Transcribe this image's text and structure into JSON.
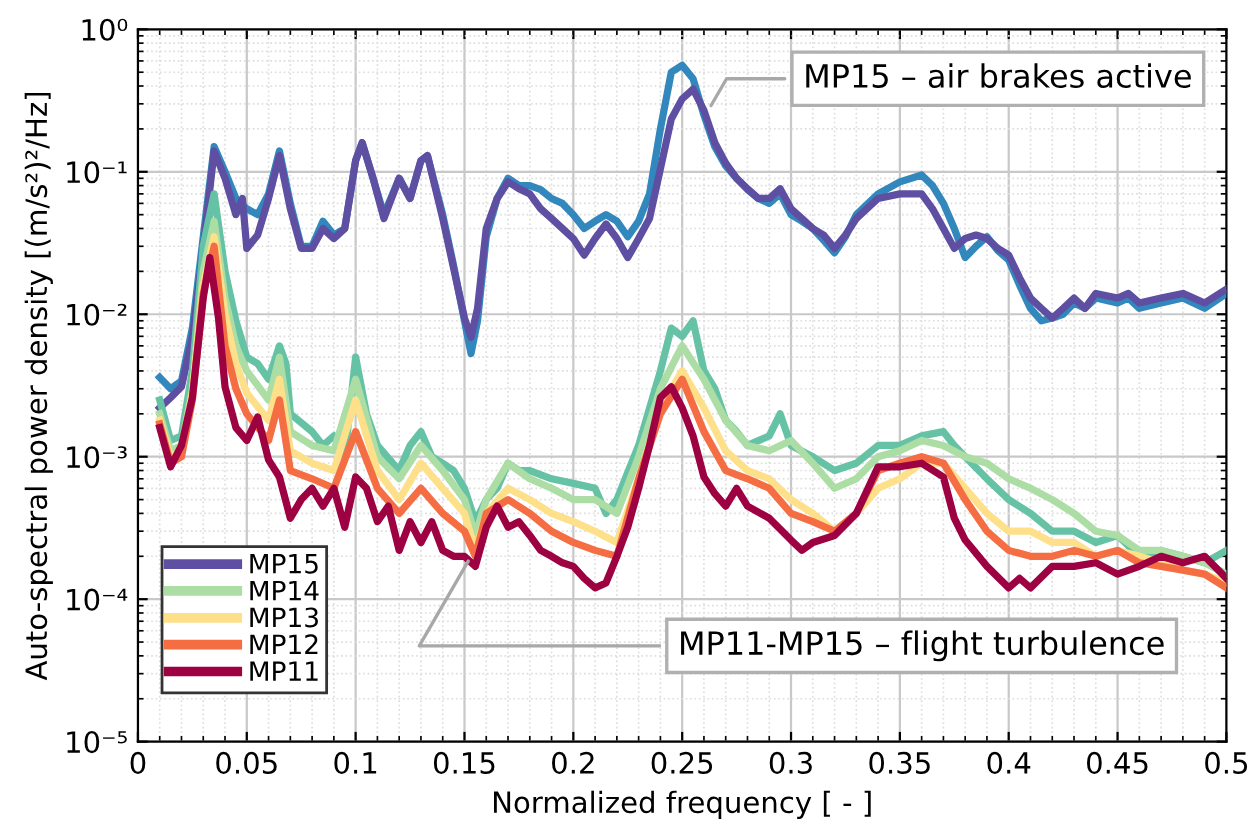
{
  "chart_data": {
    "type": "line",
    "xlabel": "Normalized frequency [ - ]",
    "ylabel": "Auto-spectral power density [(m/s²)²/Hz]",
    "log": "y",
    "grid": true,
    "legend": "bottom left",
    "line_style": "solid",
    "marker": "none",
    "xlim": [
      0,
      0.5
    ],
    "xticks": [
      0,
      0.05,
      0.1,
      0.15,
      0.2,
      0.25,
      0.3,
      0.35,
      0.4,
      0.45,
      0.5
    ],
    "ylim": [
      1e-05,
      1
    ],
    "yticks": [
      {
        "value": 1e-05,
        "label": "10⁻⁵"
      },
      {
        "value": 0.0001,
        "label": "10⁻⁴"
      },
      {
        "value": 0.001,
        "label": "10⁻³"
      },
      {
        "value": 0.01,
        "label": "10⁻²"
      },
      {
        "value": 0.1,
        "label": "10⁻¹"
      },
      {
        "value": 1,
        "label": "10⁰"
      }
    ],
    "annotations": [
      {
        "text": "MP15 – air brakes active",
        "x": 0.262,
        "y": 0.27
      },
      {
        "text": "MP11-MP15 – flight turbulence",
        "x": 0.153,
        "y": 0.0002
      }
    ],
    "series": [
      {
        "color": "#3288bd",
        "x": [
          0.01,
          0.015,
          0.02,
          0.025,
          0.03,
          0.035,
          0.04,
          0.045,
          0.05,
          0.055,
          0.06,
          0.065,
          0.07,
          0.075,
          0.08,
          0.085,
          0.09,
          0.095,
          0.1,
          0.103,
          0.108,
          0.113,
          0.12,
          0.125,
          0.13,
          0.133,
          0.14,
          0.145,
          0.15,
          0.153,
          0.156,
          0.16,
          0.165,
          0.17,
          0.175,
          0.18,
          0.185,
          0.19,
          0.195,
          0.2,
          0.205,
          0.21,
          0.215,
          0.22,
          0.225,
          0.23,
          0.235,
          0.24,
          0.245,
          0.25,
          0.255,
          0.26,
          0.265,
          0.27,
          0.275,
          0.28,
          0.285,
          0.29,
          0.295,
          0.3,
          0.305,
          0.31,
          0.315,
          0.32,
          0.325,
          0.33,
          0.34,
          0.35,
          0.36,
          0.365,
          0.37,
          0.375,
          0.38,
          0.385,
          0.39,
          0.395,
          0.4,
          0.405,
          0.41,
          0.415,
          0.42,
          0.425,
          0.43,
          0.435,
          0.44,
          0.45,
          0.455,
          0.46,
          0.47,
          0.48,
          0.49,
          0.5
        ],
        "values": [
          0.0036,
          0.003,
          0.0034,
          0.008,
          0.035,
          0.15,
          0.1,
          0.065,
          0.055,
          0.05,
          0.07,
          0.14,
          0.06,
          0.03,
          0.03,
          0.045,
          0.036,
          0.04,
          0.12,
          0.16,
          0.09,
          0.05,
          0.09,
          0.065,
          0.12,
          0.13,
          0.05,
          0.022,
          0.009,
          0.0053,
          0.009,
          0.035,
          0.065,
          0.09,
          0.08,
          0.08,
          0.075,
          0.065,
          0.06,
          0.05,
          0.04,
          0.045,
          0.05,
          0.045,
          0.035,
          0.045,
          0.07,
          0.2,
          0.5,
          0.56,
          0.45,
          0.25,
          0.15,
          0.11,
          0.09,
          0.075,
          0.065,
          0.06,
          0.07,
          0.05,
          0.045,
          0.04,
          0.033,
          0.027,
          0.035,
          0.05,
          0.07,
          0.085,
          0.095,
          0.08,
          0.06,
          0.04,
          0.025,
          0.03,
          0.035,
          0.028,
          0.024,
          0.016,
          0.011,
          0.009,
          0.0094,
          0.01,
          0.012,
          0.011,
          0.013,
          0.012,
          0.013,
          0.011,
          0.012,
          0.013,
          0.011,
          0.014
        ]
      },
      {
        "name": "MP15",
        "color": "#5e4fa2",
        "x": [
          0.01,
          0.015,
          0.02,
          0.025,
          0.03,
          0.035,
          0.04,
          0.045,
          0.048,
          0.05,
          0.055,
          0.06,
          0.065,
          0.07,
          0.075,
          0.08,
          0.085,
          0.09,
          0.095,
          0.1,
          0.103,
          0.108,
          0.113,
          0.12,
          0.125,
          0.13,
          0.133,
          0.14,
          0.145,
          0.15,
          0.153,
          0.156,
          0.16,
          0.165,
          0.17,
          0.175,
          0.18,
          0.185,
          0.19,
          0.195,
          0.2,
          0.205,
          0.21,
          0.215,
          0.22,
          0.225,
          0.23,
          0.235,
          0.24,
          0.245,
          0.25,
          0.255,
          0.26,
          0.265,
          0.27,
          0.275,
          0.28,
          0.285,
          0.29,
          0.295,
          0.3,
          0.305,
          0.31,
          0.315,
          0.32,
          0.325,
          0.33,
          0.34,
          0.35,
          0.36,
          0.365,
          0.37,
          0.375,
          0.38,
          0.385,
          0.39,
          0.395,
          0.4,
          0.405,
          0.41,
          0.415,
          0.42,
          0.425,
          0.43,
          0.435,
          0.44,
          0.45,
          0.455,
          0.46,
          0.47,
          0.48,
          0.49,
          0.5
        ],
        "values": [
          0.0022,
          0.0026,
          0.0031,
          0.0069,
          0.029,
          0.14,
          0.09,
          0.05,
          0.065,
          0.029,
          0.036,
          0.065,
          0.13,
          0.055,
          0.029,
          0.029,
          0.04,
          0.034,
          0.04,
          0.12,
          0.16,
          0.09,
          0.047,
          0.09,
          0.065,
          0.12,
          0.13,
          0.047,
          0.021,
          0.0094,
          0.0069,
          0.011,
          0.04,
          0.065,
          0.085,
          0.076,
          0.07,
          0.055,
          0.047,
          0.04,
          0.034,
          0.026,
          0.034,
          0.043,
          0.034,
          0.025,
          0.034,
          0.047,
          0.105,
          0.235,
          0.325,
          0.38,
          0.27,
          0.16,
          0.115,
          0.09,
          0.076,
          0.065,
          0.065,
          0.076,
          0.055,
          0.047,
          0.04,
          0.036,
          0.029,
          0.036,
          0.047,
          0.065,
          0.07,
          0.07,
          0.055,
          0.04,
          0.029,
          0.034,
          0.036,
          0.034,
          0.029,
          0.026,
          0.018,
          0.013,
          0.011,
          0.0094,
          0.011,
          0.013,
          0.011,
          0.014,
          0.013,
          0.014,
          0.012,
          0.013,
          0.014,
          0.012,
          0.015
        ]
      },
      {
        "color": "#66c2a5",
        "x": [
          0.01,
          0.015,
          0.02,
          0.025,
          0.03,
          0.035,
          0.04,
          0.045,
          0.05,
          0.055,
          0.06,
          0.065,
          0.068,
          0.07,
          0.08,
          0.085,
          0.09,
          0.095,
          0.1,
          0.105,
          0.11,
          0.12,
          0.125,
          0.13,
          0.135,
          0.14,
          0.145,
          0.15,
          0.155,
          0.16,
          0.165,
          0.17,
          0.175,
          0.18,
          0.19,
          0.2,
          0.21,
          0.215,
          0.22,
          0.23,
          0.24,
          0.245,
          0.25,
          0.255,
          0.26,
          0.265,
          0.27,
          0.275,
          0.28,
          0.29,
          0.295,
          0.3,
          0.31,
          0.32,
          0.33,
          0.34,
          0.35,
          0.36,
          0.37,
          0.375,
          0.38,
          0.39,
          0.4,
          0.41,
          0.42,
          0.43,
          0.44,
          0.45,
          0.46,
          0.47,
          0.48,
          0.49,
          0.5
        ],
        "values": [
          0.0025,
          0.0013,
          0.0014,
          0.004,
          0.03,
          0.07,
          0.02,
          0.009,
          0.005,
          0.0045,
          0.0035,
          0.006,
          0.0045,
          0.002,
          0.0015,
          0.0012,
          0.0014,
          0.001,
          0.005,
          0.002,
          0.0012,
          0.0008,
          0.0012,
          0.0015,
          0.001,
          0.0009,
          0.0008,
          0.0006,
          0.00035,
          0.0005,
          0.0006,
          0.0009,
          0.0008,
          0.0008,
          0.0007,
          0.00065,
          0.0006,
          0.0004,
          0.0005,
          0.0012,
          0.004,
          0.008,
          0.007,
          0.009,
          0.004,
          0.003,
          0.0018,
          0.0015,
          0.0012,
          0.0014,
          0.002,
          0.0012,
          0.001,
          0.0008,
          0.0009,
          0.0012,
          0.0012,
          0.0014,
          0.0015,
          0.0012,
          0.001,
          0.0007,
          0.0005,
          0.0004,
          0.0003,
          0.0003,
          0.00025,
          0.00028,
          0.0002,
          0.00022,
          0.0002,
          0.00018,
          0.00022
        ]
      },
      {
        "name": "MP14",
        "color": "#abdda4",
        "x": [
          0.01,
          0.015,
          0.02,
          0.025,
          0.03,
          0.035,
          0.04,
          0.045,
          0.05,
          0.06,
          0.065,
          0.07,
          0.08,
          0.09,
          0.1,
          0.11,
          0.12,
          0.13,
          0.14,
          0.15,
          0.155,
          0.16,
          0.17,
          0.18,
          0.19,
          0.2,
          0.21,
          0.22,
          0.23,
          0.24,
          0.25,
          0.26,
          0.27,
          0.28,
          0.29,
          0.3,
          0.31,
          0.32,
          0.33,
          0.34,
          0.35,
          0.36,
          0.37,
          0.38,
          0.39,
          0.4,
          0.41,
          0.42,
          0.43,
          0.44,
          0.45,
          0.46,
          0.47,
          0.48,
          0.49,
          0.5
        ],
        "values": [
          0.002,
          0.0011,
          0.0012,
          0.003,
          0.02,
          0.045,
          0.013,
          0.006,
          0.004,
          0.0025,
          0.005,
          0.0015,
          0.0012,
          0.0011,
          0.0035,
          0.001,
          0.0007,
          0.0012,
          0.0008,
          0.0005,
          0.00028,
          0.0005,
          0.0009,
          0.0007,
          0.0006,
          0.0005,
          0.0005,
          0.0004,
          0.001,
          0.003,
          0.006,
          0.0035,
          0.0018,
          0.0012,
          0.0011,
          0.0013,
          0.0009,
          0.0006,
          0.0007,
          0.001,
          0.0011,
          0.0013,
          0.0012,
          0.001,
          0.0009,
          0.0007,
          0.0006,
          0.0005,
          0.0004,
          0.0003,
          0.00028,
          0.00022,
          0.00022,
          0.0002,
          0.00018,
          0.00015
        ]
      },
      {
        "name": "MP13",
        "color": "#fee08b",
        "x": [
          0.01,
          0.015,
          0.02,
          0.025,
          0.03,
          0.035,
          0.04,
          0.045,
          0.05,
          0.06,
          0.065,
          0.07,
          0.08,
          0.09,
          0.1,
          0.11,
          0.12,
          0.13,
          0.14,
          0.15,
          0.155,
          0.16,
          0.17,
          0.18,
          0.19,
          0.2,
          0.21,
          0.22,
          0.23,
          0.24,
          0.25,
          0.26,
          0.27,
          0.28,
          0.29,
          0.3,
          0.31,
          0.32,
          0.33,
          0.34,
          0.35,
          0.36,
          0.37,
          0.38,
          0.39,
          0.4,
          0.41,
          0.42,
          0.43,
          0.44,
          0.45,
          0.46,
          0.47,
          0.48,
          0.49,
          0.5
        ],
        "values": [
          0.0018,
          0.001,
          0.0011,
          0.0028,
          0.016,
          0.035,
          0.01,
          0.0045,
          0.0028,
          0.0018,
          0.0035,
          0.0011,
          0.0009,
          0.0008,
          0.0025,
          0.0008,
          0.0005,
          0.0009,
          0.0006,
          0.0004,
          0.00022,
          0.0004,
          0.0006,
          0.0005,
          0.0004,
          0.00035,
          0.0003,
          0.00025,
          0.0007,
          0.0022,
          0.004,
          0.0022,
          0.0011,
          0.0008,
          0.0007,
          0.0005,
          0.0004,
          0.0003,
          0.0004,
          0.0006,
          0.0007,
          0.0009,
          0.0009,
          0.0006,
          0.0004,
          0.0003,
          0.0003,
          0.00025,
          0.00025,
          0.0002,
          0.00022,
          0.0002,
          0.00018,
          0.00016,
          0.00015,
          0.00013
        ]
      },
      {
        "name": "MP12",
        "color": "#f46d43",
        "x": [
          0.01,
          0.015,
          0.02,
          0.025,
          0.03,
          0.035,
          0.04,
          0.045,
          0.05,
          0.06,
          0.065,
          0.07,
          0.08,
          0.09,
          0.1,
          0.11,
          0.12,
          0.13,
          0.14,
          0.15,
          0.155,
          0.16,
          0.17,
          0.18,
          0.19,
          0.2,
          0.21,
          0.22,
          0.23,
          0.24,
          0.25,
          0.26,
          0.27,
          0.28,
          0.29,
          0.3,
          0.31,
          0.32,
          0.33,
          0.34,
          0.35,
          0.36,
          0.37,
          0.38,
          0.39,
          0.4,
          0.41,
          0.42,
          0.43,
          0.44,
          0.45,
          0.46,
          0.47,
          0.48,
          0.49,
          0.5
        ],
        "values": [
          0.0017,
          0.0009,
          0.001,
          0.0025,
          0.014,
          0.03,
          0.006,
          0.003,
          0.002,
          0.0013,
          0.0025,
          0.0008,
          0.0007,
          0.0006,
          0.0015,
          0.0006,
          0.0004,
          0.0006,
          0.0004,
          0.0003,
          0.0002,
          0.0004,
          0.0005,
          0.0004,
          0.0003,
          0.00025,
          0.00022,
          0.0002,
          0.0007,
          0.002,
          0.0035,
          0.0015,
          0.0008,
          0.0007,
          0.0006,
          0.0004,
          0.00035,
          0.0003,
          0.0004,
          0.0008,
          0.0009,
          0.001,
          0.0009,
          0.0005,
          0.0003,
          0.00022,
          0.0002,
          0.0002,
          0.00022,
          0.0002,
          0.00022,
          0.00018,
          0.00017,
          0.00016,
          0.00015,
          0.00012
        ]
      },
      {
        "name": "MP11",
        "color": "#9e0142",
        "x": [
          0.01,
          0.015,
          0.02,
          0.025,
          0.03,
          0.033,
          0.037,
          0.04,
          0.045,
          0.05,
          0.055,
          0.06,
          0.065,
          0.07,
          0.075,
          0.08,
          0.085,
          0.09,
          0.095,
          0.1,
          0.105,
          0.11,
          0.115,
          0.12,
          0.125,
          0.13,
          0.135,
          0.14,
          0.145,
          0.15,
          0.155,
          0.16,
          0.165,
          0.17,
          0.175,
          0.18,
          0.185,
          0.19,
          0.195,
          0.2,
          0.205,
          0.21,
          0.215,
          0.22,
          0.225,
          0.23,
          0.235,
          0.24,
          0.245,
          0.25,
          0.255,
          0.26,
          0.265,
          0.27,
          0.275,
          0.28,
          0.29,
          0.3,
          0.305,
          0.31,
          0.32,
          0.33,
          0.34,
          0.35,
          0.36,
          0.37,
          0.375,
          0.38,
          0.39,
          0.4,
          0.405,
          0.41,
          0.42,
          0.43,
          0.44,
          0.45,
          0.46,
          0.47,
          0.48,
          0.49,
          0.5
        ],
        "values": [
          0.0016,
          0.00085,
          0.0012,
          0.0026,
          0.013,
          0.025,
          0.0094,
          0.0031,
          0.0016,
          0.0013,
          0.0019,
          0.00095,
          0.00072,
          0.00037,
          0.0005,
          0.0006,
          0.00045,
          0.0006,
          0.00032,
          0.00072,
          0.0006,
          0.00035,
          0.00045,
          0.00022,
          0.00035,
          0.00025,
          0.00035,
          0.00022,
          0.0002,
          0.0002,
          0.00017,
          0.00032,
          0.00045,
          0.00032,
          0.00035,
          0.00028,
          0.00022,
          0.0002,
          0.00018,
          0.00017,
          0.00014,
          0.00012,
          0.00013,
          0.0002,
          0.00032,
          0.0006,
          0.0012,
          0.0026,
          0.0031,
          0.0022,
          0.0014,
          0.00072,
          0.00055,
          0.00045,
          0.0006,
          0.00045,
          0.00037,
          0.00026,
          0.00022,
          0.00025,
          0.00028,
          0.0004,
          0.00085,
          0.00085,
          0.0009,
          0.00072,
          0.00037,
          0.00026,
          0.00017,
          0.00012,
          0.00014,
          0.00012,
          0.00017,
          0.00017,
          0.00018,
          0.00015,
          0.00017,
          0.0002,
          0.00018,
          0.0002,
          0.00014
        ]
      }
    ]
  }
}
